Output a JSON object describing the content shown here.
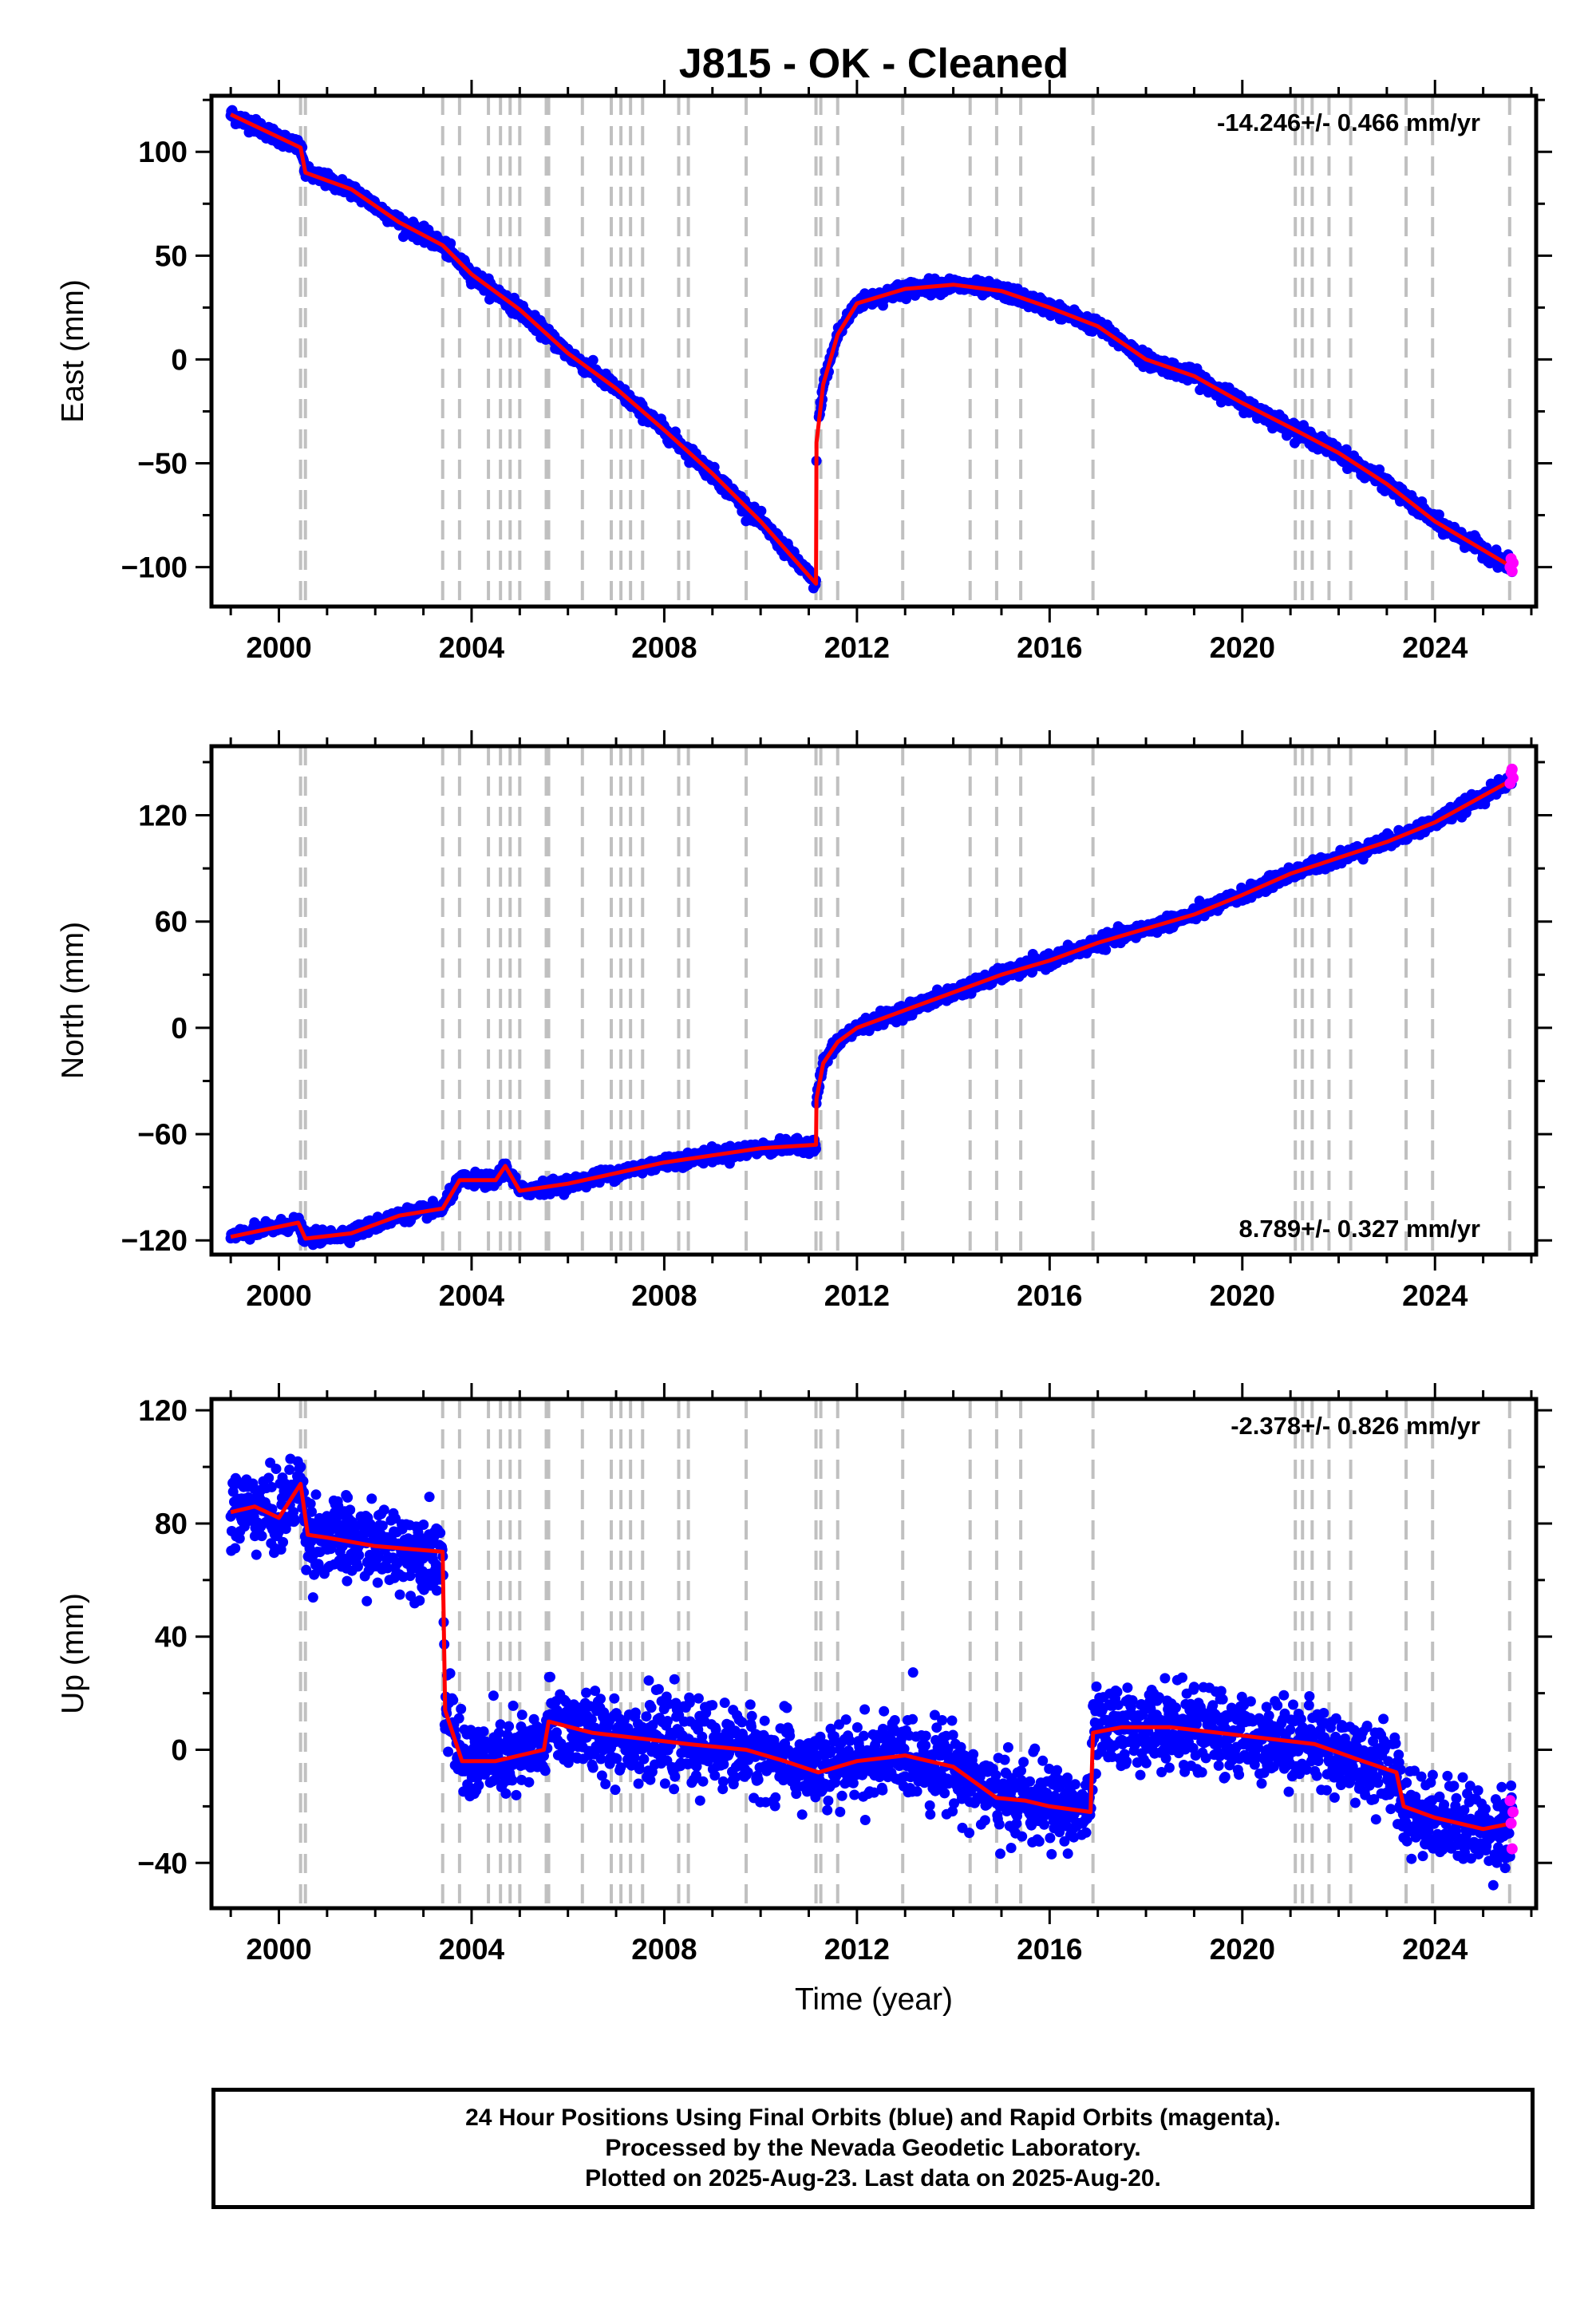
{
  "title": "J815  - OK - Cleaned",
  "colors": {
    "final": "#0000ff",
    "rapid": "#ff00ff",
    "model": "#ff0000",
    "steps": "#c0c0c0"
  },
  "step_epochs": [
    2000.45,
    2000.55,
    2003.4,
    2003.75,
    2004.35,
    2004.6,
    2004.8,
    2005.0,
    2005.55,
    2005.6,
    2006.3,
    2006.9,
    2007.1,
    2007.3,
    2007.55,
    2008.3,
    2008.5,
    2009.7,
    2011.15,
    2011.25,
    2011.6,
    2012.95,
    2014.35,
    2014.9,
    2015.4,
    2016.9,
    2021.1,
    2021.25,
    2021.45,
    2021.8,
    2022.25,
    2023.4,
    2023.95,
    2025.55
  ],
  "footer": {
    "line1": "24 Hour Positions Using Final Orbits (blue) and Rapid Orbits (magenta).",
    "line2": "Processed by the Nevada Geodetic Laboratory.",
    "line3": "Plotted on 2025-Aug-23. Last data on 2025-Aug-20."
  },
  "chart_data": [
    {
      "type": "scatter",
      "component": "east",
      "ylabel": "East (mm)",
      "xlabel": "",
      "xlim": [
        1998.6,
        2026.1
      ],
      "ylim": [
        -119,
        127
      ],
      "xticks": [
        2000,
        2004,
        2008,
        2012,
        2016,
        2020,
        2024
      ],
      "yticks": [
        -100,
        -50,
        0,
        50,
        100
      ],
      "velocity_label": "-14.246+/- 0.466 mm/yr",
      "velocity_position": "top-right",
      "scatter_noise": 1.7,
      "model": {
        "x": [
          1999.0,
          2000.45,
          2000.55,
          2001.5,
          2002.5,
          2003.4,
          2004.0,
          2005.0,
          2006.0,
          2007.0,
          2008.0,
          2009.0,
          2010.0,
          2011.15,
          2011.16,
          2011.3,
          2011.6,
          2012.0,
          2013.0,
          2014.0,
          2015.0,
          2016.0,
          2017.0,
          2018.0,
          2019.0,
          2020.0,
          2021.1,
          2022.0,
          2023.0,
          2024.0,
          2025.6
        ],
        "y": [
          118,
          102,
          90,
          82,
          66,
          55,
          41,
          24,
          3,
          -14,
          -34,
          -55,
          -78,
          -108,
          -40,
          -12,
          12,
          27,
          34,
          36,
          33,
          25,
          16,
          0,
          -8,
          -21,
          -34,
          -45,
          -60,
          -78,
          -100
        ]
      },
      "rapid": {
        "x": [
          2025.56,
          2025.58,
          2025.6,
          2025.62
        ],
        "y": [
          -100,
          -96,
          -102,
          -98
        ]
      }
    },
    {
      "type": "scatter",
      "component": "north",
      "ylabel": "North (mm)",
      "xlabel": "",
      "xlim": [
        1998.6,
        2026.1
      ],
      "ylim": [
        -128,
        159
      ],
      "xticks": [
        2000,
        2004,
        2008,
        2012,
        2016,
        2020,
        2024
      ],
      "yticks": [
        -120,
        -60,
        0,
        60,
        120
      ],
      "velocity_label": "8.789+/- 0.327 mm/yr",
      "velocity_position": "bottom-right",
      "scatter_noise": 1.8,
      "model": {
        "x": [
          1999.0,
          2000.4,
          2000.55,
          2001.5,
          2002.5,
          2003.4,
          2003.75,
          2004.5,
          2004.7,
          2005.0,
          2006.0,
          2007.0,
          2008.0,
          2009.0,
          2010.0,
          2011.15,
          2011.16,
          2011.3,
          2011.6,
          2012.0,
          2013.0,
          2014.0,
          2015.0,
          2016.0,
          2017.0,
          2018.0,
          2019.0,
          2020.0,
          2021.0,
          2022.0,
          2023.0,
          2024.0,
          2025.6
        ],
        "y": [
          -118,
          -110,
          -119,
          -116,
          -106,
          -102,
          -86,
          -86,
          -78,
          -92,
          -88,
          -82,
          -76,
          -72,
          -68,
          -66,
          -40,
          -20,
          -8,
          0,
          10,
          20,
          30,
          38,
          48,
          56,
          64,
          75,
          87,
          96,
          105,
          116,
          140
        ]
      },
      "rapid": {
        "x": [
          2025.56,
          2025.58,
          2025.6,
          2025.62
        ],
        "y": [
          138,
          144,
          146,
          141
        ]
      }
    },
    {
      "type": "scatter",
      "component": "up",
      "ylabel": "Up (mm)",
      "xlabel": "Time (year)",
      "xlim": [
        1998.6,
        2026.1
      ],
      "ylim": [
        -56,
        124
      ],
      "xticks": [
        2000,
        2004,
        2008,
        2012,
        2016,
        2020,
        2024
      ],
      "yticks": [
        -40,
        0,
        40,
        80,
        120
      ],
      "velocity_label": "-2.378+/- 0.826 mm/yr",
      "velocity_position": "top-right",
      "scatter_noise": 7,
      "model": {
        "x": [
          1999.0,
          1999.5,
          2000.0,
          2000.45,
          2000.6,
          2001.0,
          2002.0,
          2003.4,
          2003.45,
          2003.8,
          2004.5,
          2005.5,
          2005.6,
          2006.5,
          2007.5,
          2008.5,
          2009.7,
          2010.5,
          2011.2,
          2012.0,
          2013.0,
          2014.0,
          2014.9,
          2015.5,
          2016.0,
          2016.85,
          2016.9,
          2017.5,
          2018.5,
          2019.5,
          2020.5,
          2021.5,
          2022.5,
          2023.2,
          2023.35,
          2024.0,
          2025.0,
          2025.6
        ],
        "y": [
          84,
          86,
          82,
          94,
          76,
          75,
          72,
          70,
          14,
          -4,
          -4,
          0,
          10,
          6,
          4,
          2,
          0,
          -4,
          -8,
          -4,
          -2,
          -6,
          -17,
          -18,
          -20,
          -22,
          6,
          8,
          8,
          6,
          4,
          2,
          -4,
          -8,
          -20,
          -24,
          -28,
          -26
        ]
      },
      "rapid": {
        "x": [
          2025.56,
          2025.58,
          2025.6,
          2025.62
        ],
        "y": [
          -18,
          -26,
          -35,
          -22
        ]
      }
    }
  ]
}
